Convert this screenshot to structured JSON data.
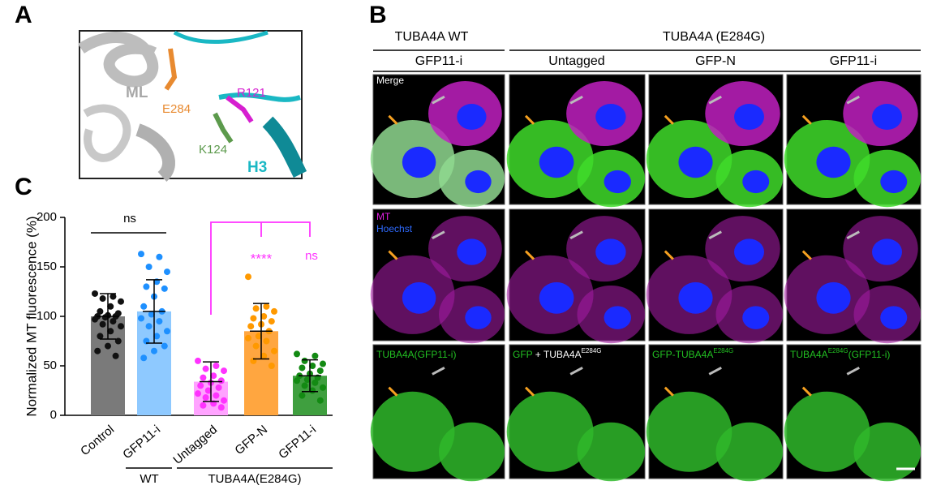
{
  "panel_labels": [
    "A",
    "B",
    "C"
  ],
  "panel_a": {
    "labels": [
      "ML",
      "E284",
      "R121",
      "K124",
      "H3"
    ]
  },
  "panel_b": {
    "group_headers": [
      "TUBA4A WT",
      "TUBA4A (E284G)"
    ],
    "column_headers": [
      "GFP11-i",
      "Untagged",
      "GFP-N",
      "GFP11-i"
    ],
    "row1_label": "Merge",
    "row2_labels": [
      "MT",
      "Hoechst"
    ],
    "row3_labels": [
      [
        "TUBA4A(GFP11-i)"
      ],
      [
        "GFP",
        " + TUBA4A",
        "E284G"
      ],
      [
        "GFP-TUBA4A",
        "E284G"
      ],
      [
        "TUBA4A",
        "E284G",
        "(GFP11-i)"
      ]
    ]
  },
  "chart_data": {
    "type": "bar",
    "ylabel": "Normalized MT fluorescence (%)",
    "categories": [
      "Control",
      "GFP11-i",
      "Untagged",
      "GFP-N",
      "GFP11-i"
    ],
    "group_labels": [
      "WT",
      "TUBA4A(E284G)"
    ],
    "values": [
      100,
      105,
      34,
      85,
      40
    ],
    "errors": [
      23,
      32,
      20,
      28,
      16
    ],
    "bar_colors": [
      "#7a7a7a",
      "#8ec9ff",
      "#ffa3ff",
      "#ffa640",
      "#3f9f3f"
    ],
    "point_colors": [
      "#111111",
      "#1e90ff",
      "#ff33ff",
      "#ff9900",
      "#138a13"
    ],
    "points": [
      [
        123,
        120,
        118,
        115,
        110,
        105,
        103,
        101,
        100,
        100,
        99,
        97,
        95,
        92,
        90,
        85,
        80,
        75,
        70,
        65,
        60
      ],
      [
        163,
        160,
        150,
        145,
        135,
        130,
        128,
        120,
        110,
        105,
        102,
        98,
        95,
        90,
        85,
        80,
        75,
        70,
        65,
        58
      ],
      [
        55,
        50,
        47,
        45,
        40,
        38,
        35,
        33,
        30,
        28,
        25,
        22,
        20,
        18,
        15,
        12,
        10,
        8
      ],
      [
        140,
        110,
        108,
        105,
        100,
        98,
        95,
        92,
        90,
        85,
        80,
        78,
        75,
        70,
        65,
        60,
        55,
        50
      ],
      [
        62,
        60,
        55,
        52,
        50,
        48,
        45,
        42,
        40,
        38,
        36,
        35,
        33,
        30,
        28,
        25,
        20,
        15
      ]
    ],
    "annotations": [
      "ns",
      "****",
      "ns"
    ],
    "annotation_colors": [
      "#000000",
      "#ff33ff",
      "#ff33ff"
    ],
    "ylim": [
      0,
      200
    ],
    "yticks": [
      0,
      50,
      100,
      150,
      200
    ]
  }
}
